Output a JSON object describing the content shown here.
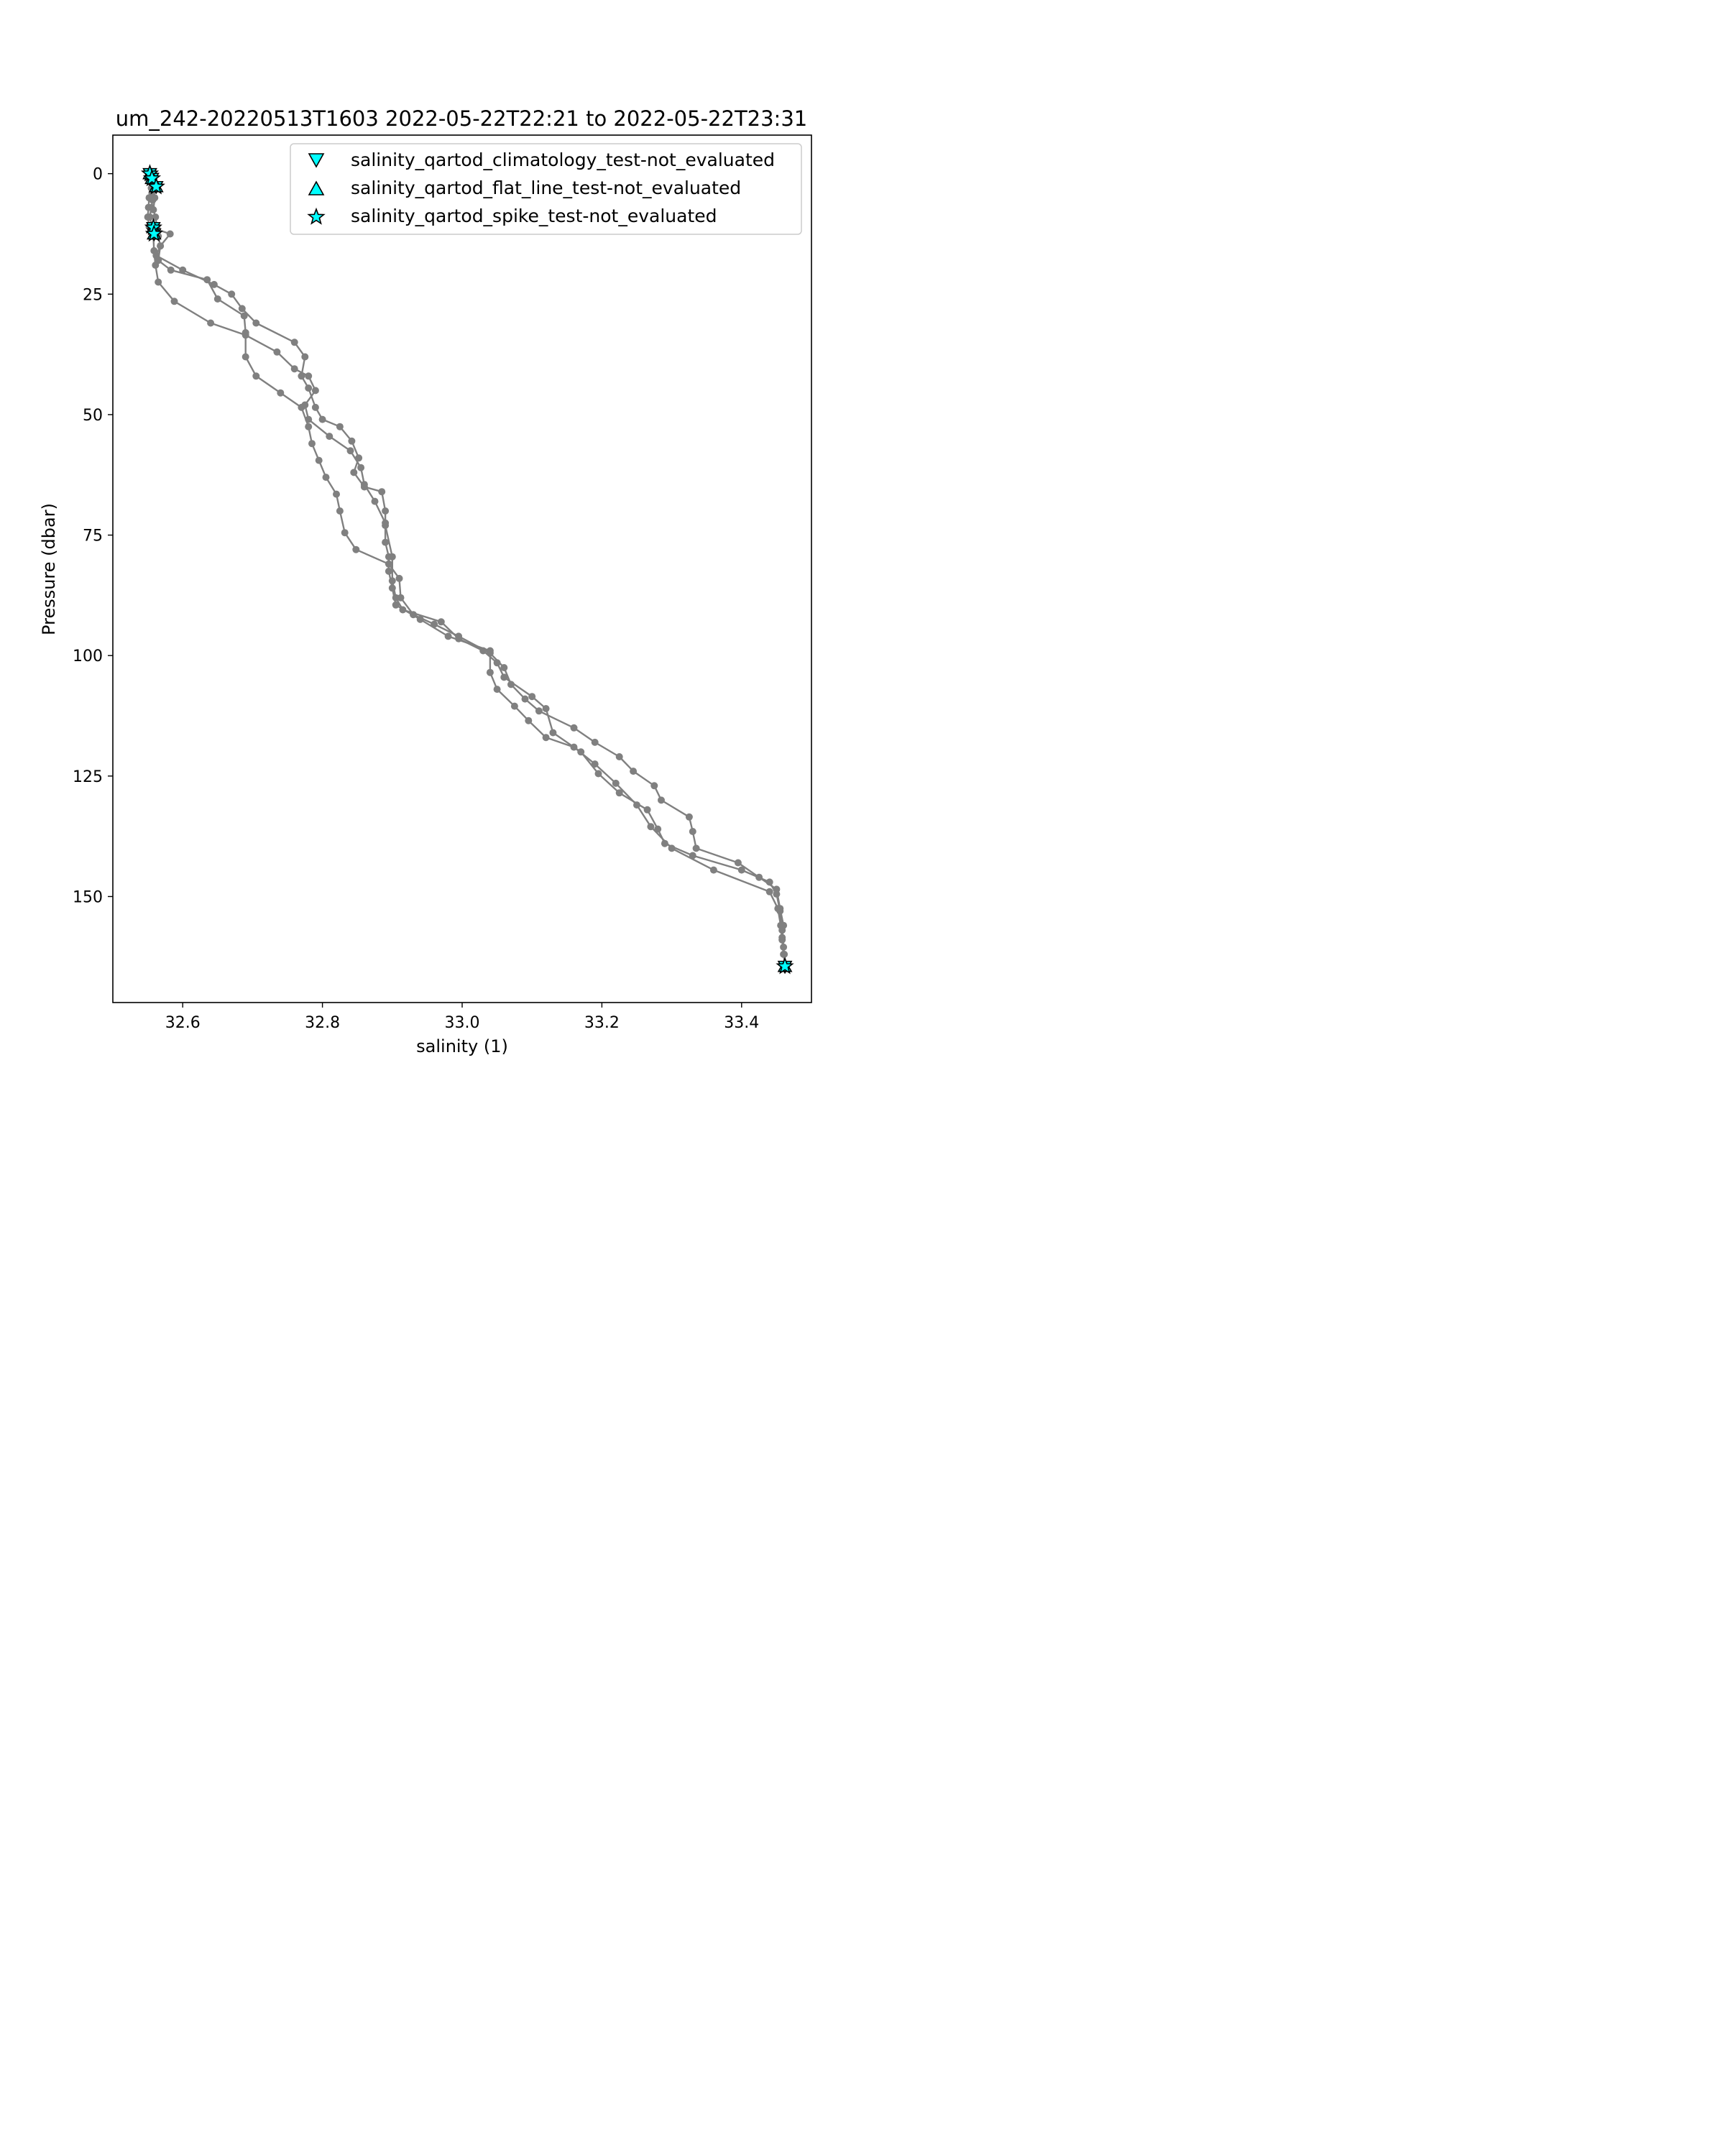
{
  "chart_data": {
    "type": "line",
    "title": "um_242-20220513T1603 2022-05-22T22:21 to 2022-05-22T23:31",
    "xlabel": "salinity (1)",
    "ylabel": "Pressure (dbar)",
    "xlim": [
      32.5,
      33.5
    ],
    "ylim": [
      172,
      -8
    ],
    "y_inverted": true,
    "grid": false,
    "legend_position": "top-right",
    "x_ticks": [
      32.6,
      32.8,
      33.0,
      33.2,
      33.4
    ],
    "x_tick_labels": [
      "32.6",
      "32.8",
      "33.0",
      "33.2",
      "33.4"
    ],
    "y_ticks": [
      0,
      25,
      50,
      75,
      100,
      125,
      150
    ],
    "y_tick_labels": [
      "0",
      "25",
      "50",
      "75",
      "100",
      "125",
      "150"
    ],
    "line_color": "#808080",
    "marker_color": "#00ffff",
    "series": [
      {
        "points": [
          [
            32.553,
            0.0
          ],
          [
            32.555,
            1.0
          ],
          [
            32.558,
            2.5
          ],
          [
            32.556,
            4.0
          ],
          [
            32.557,
            5.5
          ],
          [
            32.555,
            7.0
          ],
          [
            32.553,
            9.0
          ],
          [
            32.556,
            11.0
          ],
          [
            32.558,
            13.0
          ],
          [
            32.559,
            16.0
          ],
          [
            32.561,
            19.0
          ],
          [
            32.565,
            22.5
          ],
          [
            32.588,
            26.5
          ],
          [
            32.64,
            31.0
          ],
          [
            32.69,
            33.5
          ],
          [
            32.735,
            37.0
          ],
          [
            32.76,
            40.5
          ],
          [
            32.78,
            42.0
          ],
          [
            32.79,
            45.0
          ],
          [
            32.775,
            48.0
          ],
          [
            32.78,
            51.0
          ],
          [
            32.81,
            54.5
          ],
          [
            32.84,
            57.5
          ],
          [
            32.855,
            61.0
          ],
          [
            32.86,
            64.5
          ],
          [
            32.875,
            68.0
          ],
          [
            32.89,
            72.5
          ],
          [
            32.89,
            76.5
          ],
          [
            32.895,
            79.5
          ],
          [
            32.895,
            82.5
          ],
          [
            32.9,
            86.0
          ],
          [
            32.905,
            89.5
          ],
          [
            32.94,
            92.5
          ],
          [
            32.98,
            96.0
          ],
          [
            33.04,
            99.0
          ],
          [
            33.04,
            103.5
          ],
          [
            33.05,
            107.0
          ],
          [
            33.075,
            110.5
          ],
          [
            33.095,
            113.5
          ],
          [
            33.12,
            117.0
          ],
          [
            33.16,
            119.0
          ],
          [
            33.19,
            122.5
          ],
          [
            33.22,
            126.5
          ],
          [
            33.25,
            131.0
          ],
          [
            33.27,
            135.5
          ],
          [
            33.3,
            140.0
          ],
          [
            33.36,
            144.5
          ],
          [
            33.44,
            149.0
          ],
          [
            33.452,
            152.5
          ],
          [
            33.456,
            156.0
          ],
          [
            33.458,
            159.0
          ],
          [
            33.461,
            162.0
          ],
          [
            33.462,
            164.5
          ]
        ]
      },
      {
        "points": [
          [
            32.553,
            0.5
          ],
          [
            32.552,
            1.5
          ],
          [
            32.555,
            3.0
          ],
          [
            32.552,
            5.0
          ],
          [
            32.551,
            7.0
          ],
          [
            32.55,
            9.0
          ],
          [
            32.552,
            11.0
          ],
          [
            32.582,
            12.5
          ],
          [
            32.568,
            15.0
          ],
          [
            32.565,
            18.0
          ],
          [
            32.583,
            20.0
          ],
          [
            32.635,
            22.0
          ],
          [
            32.65,
            26.0
          ],
          [
            32.688,
            29.5
          ],
          [
            32.69,
            33.0
          ],
          [
            32.69,
            38.0
          ],
          [
            32.705,
            42.0
          ],
          [
            32.74,
            45.5
          ],
          [
            32.77,
            48.5
          ],
          [
            32.78,
            52.5
          ],
          [
            32.785,
            56.0
          ],
          [
            32.795,
            59.5
          ],
          [
            32.805,
            63.0
          ],
          [
            32.82,
            66.5
          ],
          [
            32.825,
            70.0
          ],
          [
            32.832,
            74.5
          ],
          [
            32.848,
            78.0
          ],
          [
            32.895,
            81.0
          ],
          [
            32.91,
            84.0
          ],
          [
            32.912,
            88.0
          ],
          [
            32.93,
            91.5
          ],
          [
            32.96,
            93.5
          ],
          [
            32.995,
            96.0
          ],
          [
            33.04,
            99.5
          ],
          [
            33.06,
            102.5
          ],
          [
            33.07,
            106.0
          ],
          [
            33.09,
            109.0
          ],
          [
            33.11,
            111.5
          ],
          [
            33.16,
            115.0
          ],
          [
            33.19,
            118.0
          ],
          [
            33.225,
            121.0
          ],
          [
            33.245,
            124.0
          ],
          [
            33.275,
            127.0
          ],
          [
            33.285,
            130.0
          ],
          [
            33.325,
            133.5
          ],
          [
            33.33,
            136.5
          ],
          [
            33.335,
            140.0
          ],
          [
            33.395,
            143.0
          ],
          [
            33.425,
            146.0
          ],
          [
            33.45,
            148.5
          ],
          [
            33.455,
            152.5
          ],
          [
            33.46,
            156.0
          ],
          [
            33.458,
            158.5
          ],
          [
            33.46,
            162.0
          ],
          [
            33.462,
            164.5
          ]
        ]
      },
      {
        "points": [
          [
            32.556,
            1.0
          ],
          [
            32.558,
            3.0
          ],
          [
            32.56,
            5.0
          ],
          [
            32.558,
            7.5
          ],
          [
            32.561,
            9.0
          ],
          [
            32.563,
            11.0
          ],
          [
            32.565,
            13.0
          ],
          [
            32.568,
            15.0
          ],
          [
            32.562,
            17.0
          ],
          [
            32.6,
            20.0
          ],
          [
            32.645,
            23.0
          ],
          [
            32.67,
            25.0
          ],
          [
            32.685,
            28.0
          ],
          [
            32.705,
            31.0
          ],
          [
            32.76,
            35.0
          ],
          [
            32.775,
            38.0
          ],
          [
            32.77,
            42.0
          ],
          [
            32.78,
            44.5
          ],
          [
            32.79,
            48.5
          ],
          [
            32.8,
            51.0
          ],
          [
            32.825,
            52.5
          ],
          [
            32.842,
            55.5
          ],
          [
            32.852,
            59.0
          ],
          [
            32.845,
            62.0
          ],
          [
            32.86,
            65.0
          ],
          [
            32.885,
            66.0
          ],
          [
            32.89,
            70.0
          ],
          [
            32.89,
            73.0
          ],
          [
            32.9,
            79.5
          ],
          [
            32.9,
            84.5
          ],
          [
            32.905,
            88.0
          ],
          [
            32.915,
            90.5
          ],
          [
            32.97,
            93.0
          ],
          [
            32.995,
            96.5
          ],
          [
            33.03,
            99.0
          ],
          [
            33.05,
            101.5
          ],
          [
            33.06,
            104.5
          ],
          [
            33.1,
            108.5
          ],
          [
            33.12,
            111.0
          ],
          [
            33.13,
            116.0
          ],
          [
            33.17,
            120.0
          ],
          [
            33.195,
            124.5
          ],
          [
            33.225,
            128.5
          ],
          [
            33.265,
            132.0
          ],
          [
            33.28,
            136.0
          ],
          [
            33.29,
            139.0
          ],
          [
            33.33,
            141.5
          ],
          [
            33.4,
            144.5
          ],
          [
            33.44,
            147.0
          ],
          [
            33.45,
            149.5
          ],
          [
            33.455,
            153.0
          ],
          [
            33.458,
            157.0
          ],
          [
            33.46,
            160.5
          ],
          [
            33.462,
            164.5
          ]
        ]
      }
    ],
    "legend": [
      {
        "label": "salinity_qartod_climatology_test-not_evaluated",
        "marker": "triangle-down"
      },
      {
        "label": "salinity_qartod_flat_line_test-not_evaluated",
        "marker": "triangle-up"
      },
      {
        "label": "salinity_qartod_spike_test-not_evaluated",
        "marker": "star"
      }
    ],
    "flagged_points": {
      "climatology": [
        [
          32.553,
          0.0
        ],
        [
          32.556,
          1.0
        ],
        [
          32.562,
          2.7
        ],
        [
          32.558,
          11.2
        ],
        [
          32.559,
          12.5
        ],
        [
          33.462,
          164.5
        ]
      ],
      "flat_line": [
        [
          32.553,
          0.0
        ],
        [
          32.556,
          1.0
        ],
        [
          32.562,
          2.7
        ],
        [
          32.558,
          11.2
        ],
        [
          32.559,
          12.5
        ],
        [
          33.462,
          164.5
        ]
      ],
      "spike": [
        [
          32.553,
          0.0
        ],
        [
          32.556,
          1.0
        ],
        [
          32.562,
          2.7
        ],
        [
          32.558,
          11.2
        ],
        [
          32.559,
          12.5
        ],
        [
          33.462,
          164.5
        ]
      ]
    }
  }
}
